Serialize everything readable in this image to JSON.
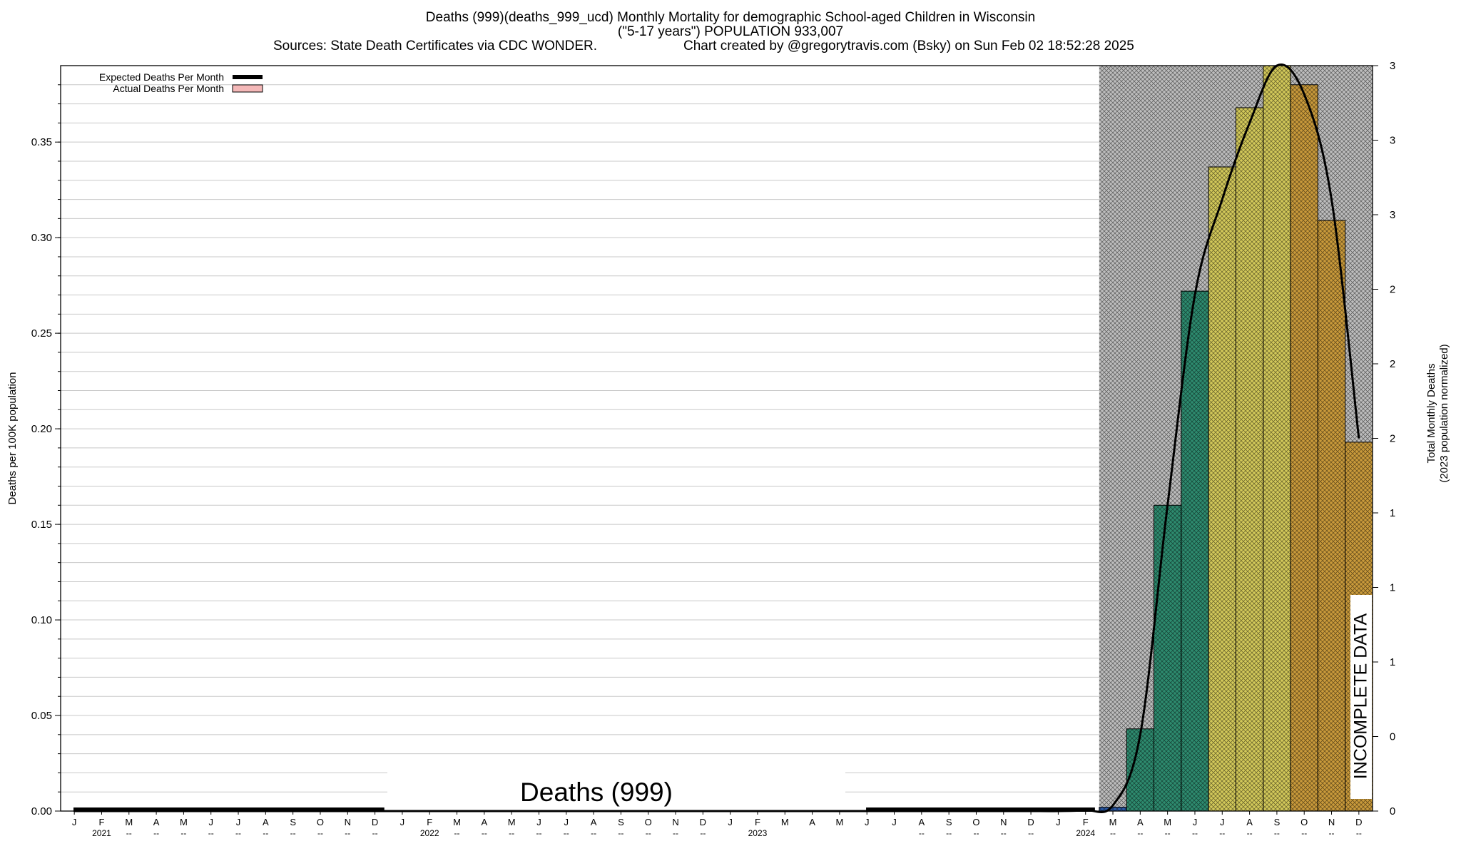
{
  "header": {
    "title": "Deaths (999)(deaths_999_ucd) Monthly Mortality for demographic School-aged Children in Wisconsin",
    "subtitle": "(\"5-17 years\") POPULATION 933,007",
    "sources": "Sources: State Death Certificates via CDC WONDER.",
    "credit": "Chart created by @gregorytravis.com (Bsky) on Sun Feb 02 18:52:28 2025"
  },
  "chart_data": {
    "type": "bar",
    "ylabel": "Deaths per 100K population",
    "y2label_line1": "Total Monthly Deaths",
    "y2label_line2": "(2023 population normalized)",
    "ylim": [
      0,
      0.39
    ],
    "yticks": [
      "0.00",
      "0.05",
      "0.10",
      "0.15",
      "0.20",
      "0.25",
      "0.30",
      "0.35"
    ],
    "y2ticks": [
      "0",
      "0",
      "1",
      "1",
      "1",
      "2",
      "2",
      "2",
      "3",
      "3",
      "3"
    ],
    "grid": true,
    "legend_position": "top-left",
    "legend": [
      {
        "label": "Expected Deaths Per Month",
        "style": "thick-black-line"
      },
      {
        "label": "Actual Deaths Per Month",
        "style": "pink-box"
      }
    ],
    "center_label": "Deaths (999)",
    "incomplete_label": "INCOMPLETE DATA",
    "months": [
      "J",
      "F",
      "M",
      "A",
      "M",
      "J",
      "J",
      "A",
      "S",
      "O",
      "N",
      "D",
      "J",
      "F",
      "M",
      "A",
      "M",
      "J",
      "J",
      "A",
      "S",
      "O",
      "N",
      "D",
      "J",
      "F",
      "M",
      "A",
      "M",
      "J",
      "J",
      "A",
      "S",
      "O",
      "N",
      "D",
      "J",
      "F",
      "M",
      "A",
      "M",
      "J",
      "J",
      "A",
      "S",
      "O",
      "N",
      "D"
    ],
    "years": [
      {
        "label": "2021",
        "month_index": 1
      },
      {
        "label": "2022",
        "month_index": 13
      },
      {
        "label": "2023",
        "month_index": 25
      },
      {
        "label": "2024",
        "month_index": 37
      }
    ],
    "dash_label": "--",
    "expected_line_zero_segments": [
      [
        0,
        11
      ],
      [
        29,
        37
      ]
    ],
    "incomplete_start_index": 38,
    "series": [
      {
        "name": "Expected Deaths Per Month",
        "values": [
          0,
          0,
          0,
          0,
          0,
          0,
          0,
          0,
          0,
          0,
          0,
          0,
          0,
          0,
          0,
          0,
          0,
          0,
          0,
          0,
          0,
          0,
          0,
          0,
          0,
          0,
          0,
          0,
          0,
          0,
          0,
          0,
          0,
          0,
          0,
          0,
          0,
          0.0005,
          0.003,
          0.04,
          0.16,
          0.27,
          0.32,
          0.36,
          0.39,
          0.375,
          0.32,
          0.195
        ]
      },
      {
        "name": "Actual Deaths Per Month",
        "values": [
          0,
          0,
          0,
          0,
          0,
          0,
          0,
          0,
          0,
          0,
          0,
          0,
          0,
          0,
          0,
          0,
          0,
          0,
          0,
          0,
          0,
          0,
          0,
          0,
          0,
          0,
          0,
          0,
          0,
          0,
          0,
          0,
          0,
          0,
          0,
          0,
          0,
          0,
          0.002,
          0.043,
          0.16,
          0.272,
          0.337,
          0.368,
          0.39,
          0.38,
          0.309,
          0.193
        ]
      }
    ],
    "colors": {
      "teal": "#2e8b6f",
      "yellow": "#d2c85a",
      "gold": "#c99a3b",
      "blue": "#2a5aa8",
      "hatch_bg": "#bdbdbd",
      "legend_actual": "#f4b8b8"
    }
  }
}
